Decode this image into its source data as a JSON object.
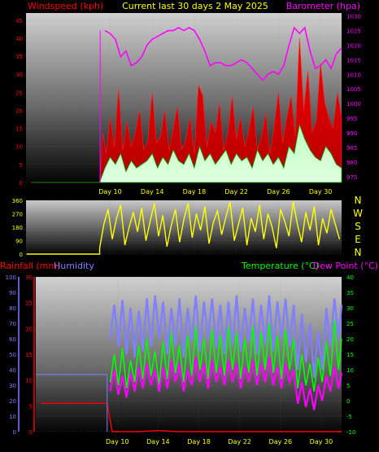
{
  "header": {
    "left_label": "Windspeed (kph)",
    "center_label": "Current last 30 days 2 May 2025",
    "right_label": "Barometer (hpa)"
  },
  "compass": [
    "N",
    "W",
    "S",
    "E",
    "N"
  ],
  "bottom_header": {
    "rain_label": "Rainfall (mm)",
    "humidity_label": "Humidity",
    "temp_label": "Temperature (°C)",
    "dew_label": "Dew Point (°C)"
  },
  "colors": {
    "wind": "#ff0000",
    "gust": "#ff0000",
    "avgwind": "#00c000",
    "barometer": "#ff00ff",
    "direction": "#ffff00",
    "humidity": "#7f7fff",
    "temperature": "#00ff00",
    "dewpoint": "#ff00ff",
    "rain": "#ff0000",
    "tick_text": "#ffff00",
    "left_axis_top": "#ff0000",
    "right_axis_top": "#ff00ff",
    "left_axis_bottom_hum": "#7f7fff",
    "left_axis_bottom_rain": "#ff0000",
    "right_axis_bottom": "#00ff00"
  },
  "chart_data": [
    {
      "type": "line",
      "x_ticks": [
        "Day 10",
        "Day 14",
        "Day 18",
        "Day 22",
        "Day 26",
        "Day 30"
      ],
      "x_range_days": [
        2,
        32
      ],
      "y_left": {
        "ticks": [
          0,
          5,
          10,
          15,
          20,
          25,
          30,
          35,
          40,
          45
        ],
        "ylim": [
          0,
          47
        ]
      },
      "y_right": {
        "ticks": [
          975,
          980,
          985,
          990,
          995,
          1000,
          1005,
          1010,
          1015,
          1020,
          1025,
          1030
        ],
        "ylim": [
          973,
          1031
        ]
      },
      "series": [
        {
          "x": [
            2.5,
            3,
            4,
            5,
            6,
            7,
            8,
            9,
            9.5,
            10,
            10.5,
            11,
            11.5,
            12,
            12.5,
            13,
            13.5,
            14,
            14.5,
            15,
            15.5,
            16,
            16.5,
            17,
            17.5,
            18,
            18.5,
            19,
            19.5,
            20,
            20.5,
            21,
            21.5,
            22,
            22.5,
            23,
            23.5,
            24,
            24.5,
            25,
            25.5,
            26,
            26.5,
            27,
            27.5,
            28,
            28.5,
            29,
            29.5,
            30,
            30.5,
            31,
            31.5,
            32
          ],
          "y": [
            null,
            null,
            null,
            null,
            null,
            null,
            null,
            null,
            1025,
            1024,
            1022,
            1016,
            1018,
            1013,
            1014,
            1016,
            1020,
            1022,
            1023,
            1024,
            1025,
            1025,
            1026,
            1025,
            1026,
            1025,
            1022,
            1018,
            1013,
            1014,
            1014,
            1013,
            1013,
            1014,
            1015,
            1014,
            1012,
            1010,
            1008,
            1010,
            1011,
            1010,
            1013,
            1020,
            1026,
            1024,
            1026,
            1018,
            1012,
            1013,
            1015,
            1012,
            1017,
            1019
          ]
        },
        {
          "x": [
            2.5,
            3,
            4,
            5,
            6,
            7,
            8,
            9,
            9.3,
            9.6,
            10,
            10.4,
            10.8,
            11.2,
            11.6,
            12,
            12.4,
            12.8,
            13.2,
            13.6,
            14,
            14.4,
            14.8,
            15.2,
            15.6,
            16,
            16.4,
            16.8,
            17.2,
            17.6,
            18,
            18.4,
            18.8,
            19.2,
            19.6,
            20,
            20.4,
            20.8,
            21.2,
            21.6,
            22,
            22.4,
            22.8,
            23.2,
            23.6,
            24,
            24.4,
            24.8,
            25.2,
            25.6,
            26,
            26.4,
            26.8,
            27.2,
            27.6,
            28,
            28.4,
            28.8,
            29.2,
            29.6,
            30,
            30.4,
            30.8,
            31.2,
            31.6,
            32
          ],
          "y": [
            0,
            0,
            0,
            0,
            0,
            0,
            0,
            0,
            14,
            8,
            18,
            10,
            26,
            9,
            17,
            10,
            14,
            20,
            9,
            12,
            25,
            11,
            13,
            20,
            9,
            15,
            21,
            9,
            12,
            18,
            8,
            27,
            24,
            10,
            17,
            14,
            22,
            9,
            14,
            24,
            12,
            18,
            10,
            15,
            21,
            9,
            13,
            19,
            8,
            16,
            25,
            11,
            18,
            24,
            13,
            40,
            20,
            31,
            14,
            17,
            33,
            22,
            18,
            15,
            25,
            18
          ]
        },
        {
          "x": [
            2.5,
            9,
            9.5,
            10,
            10.5,
            11,
            11.5,
            12,
            12.5,
            13,
            13.5,
            14,
            14.5,
            15,
            15.5,
            16,
            16.5,
            17,
            17.5,
            18,
            18.5,
            19,
            19.5,
            20,
            20.5,
            21,
            21.5,
            22,
            22.5,
            23,
            23.5,
            24,
            24.5,
            25,
            25.5,
            26,
            26.5,
            27,
            27.5,
            28,
            28.5,
            29,
            29.5,
            30,
            30.5,
            31,
            31.5,
            32
          ],
          "y": [
            0,
            0,
            4,
            7,
            5,
            8,
            3,
            6,
            4,
            5,
            6,
            8,
            4,
            7,
            5,
            9,
            6,
            5,
            8,
            4,
            10,
            6,
            8,
            5,
            7,
            9,
            5,
            8,
            6,
            7,
            4,
            9,
            6,
            8,
            5,
            7,
            4,
            10,
            8,
            16,
            12,
            9,
            7,
            6,
            10,
            8,
            5,
            4
          ]
        }
      ]
    },
    {
      "type": "scatter",
      "x_ticks": [
        "Day 10",
        "Day 14",
        "Day 18",
        "Day 22",
        "Day 26",
        "Day 30"
      ],
      "y_ticks": [
        0,
        90,
        180,
        270,
        360
      ],
      "ylim": [
        0,
        360
      ],
      "right_labels": [
        "N",
        "W",
        "S",
        "E",
        "N"
      ],
      "series": [
        {
          "x": [
            9,
            9.4,
            9.8,
            10.2,
            10.6,
            11,
            11.4,
            11.8,
            12.2,
            12.6,
            13,
            13.4,
            13.8,
            14.2,
            14.6,
            15,
            15.4,
            15.8,
            16.2,
            16.6,
            17,
            17.4,
            17.8,
            18.2,
            18.6,
            19,
            19.4,
            19.8,
            20.2,
            20.6,
            21,
            21.4,
            21.8,
            22.2,
            22.6,
            23,
            23.4,
            23.8,
            24.2,
            24.6,
            25,
            25.4,
            25.8,
            26.2,
            26.6,
            27,
            27.4,
            27.8,
            28.2,
            28.6,
            29,
            29.4,
            29.8,
            30.2,
            30.6,
            31,
            31.4,
            31.8
          ],
          "y": [
            40,
            200,
            300,
            100,
            240,
            330,
            60,
            180,
            280,
            150,
            310,
            90,
            220,
            340,
            120,
            260,
            50,
            190,
            300,
            80,
            230,
            340,
            110,
            270,
            160,
            320,
            70,
            210,
            290,
            130,
            250,
            350,
            90,
            200,
            310,
            60,
            240,
            150,
            330,
            100,
            270,
            180,
            40,
            300,
            220,
            120,
            350,
            200,
            80,
            280,
            160,
            320,
            60,
            240,
            140,
            300,
            200,
            100
          ]
        }
      ]
    },
    {
      "type": "line",
      "x_ticks": [
        "Day 10",
        "Day 14",
        "Day 18",
        "Day 22",
        "Day 26",
        "Day 30"
      ],
      "y_left_humidity": {
        "ticks": [
          0,
          10,
          20,
          30,
          40,
          50,
          60,
          70,
          80,
          90,
          100
        ],
        "ylim": [
          0,
          100
        ]
      },
      "y_left_rain": {
        "ticks": [
          0,
          5,
          10,
          15,
          20,
          25,
          30
        ],
        "ylim": [
          0,
          30
        ]
      },
      "y_right": {
        "ticks": [
          -10,
          -5,
          0,
          5,
          10,
          15,
          20,
          25,
          30,
          35,
          40
        ],
        "ylim": [
          -10,
          40
        ]
      },
      "series": [
        {
          "x": [
            2.5,
            9,
            9.3,
            9.7,
            10.1,
            10.5,
            10.9,
            11.3,
            11.7,
            12.1,
            12.5,
            12.9,
            13.3,
            13.7,
            14.1,
            14.5,
            14.9,
            15.3,
            15.7,
            16.1,
            16.5,
            16.9,
            17.3,
            17.7,
            18.1,
            18.5,
            18.9,
            19.3,
            19.7,
            20.1,
            20.5,
            20.9,
            21.3,
            21.7,
            22.1,
            22.5,
            22.9,
            23.3,
            23.7,
            24.1,
            24.5,
            24.9,
            25.3,
            25.7,
            26.1,
            26.5,
            26.9,
            27.3,
            27.7,
            28.1,
            28.5,
            28.9,
            29.3,
            29.7,
            30.1,
            30.5,
            30.9,
            31.3,
            31.7,
            32
          ],
          "y": [
            null,
            null,
            60,
            82,
            55,
            85,
            50,
            80,
            48,
            78,
            52,
            86,
            55,
            88,
            60,
            84,
            50,
            80,
            55,
            86,
            48,
            80,
            58,
            88,
            52,
            84,
            60,
            86,
            54,
            82,
            50,
            84,
            56,
            88,
            52,
            80,
            58,
            86,
            50,
            82,
            56,
            88,
            52,
            84,
            60,
            86,
            55,
            82,
            40,
            76,
            45,
            70,
            35,
            65,
            40,
            80,
            55,
            86,
            60,
            82
          ]
        },
        {
          "x": [
            2.5,
            9,
            9.3,
            9.7,
            10.1,
            10.5,
            10.9,
            11.3,
            11.7,
            12.1,
            12.5,
            12.9,
            13.3,
            13.7,
            14.1,
            14.5,
            14.9,
            15.3,
            15.7,
            16.1,
            16.5,
            16.9,
            17.3,
            17.7,
            18.1,
            18.5,
            18.9,
            19.3,
            19.7,
            20.1,
            20.5,
            20.9,
            21.3,
            21.7,
            22.1,
            22.5,
            22.9,
            23.3,
            23.7,
            24.1,
            24.5,
            24.9,
            25.3,
            25.7,
            26.1,
            26.5,
            26.9,
            27.3,
            27.7,
            28.1,
            28.5,
            28.9,
            29.3,
            29.7,
            30.1,
            30.5,
            30.9,
            31.3,
            31.7,
            32
          ],
          "y": [
            null,
            null,
            6,
            15,
            5,
            17,
            4,
            13,
            6,
            18,
            7,
            20,
            8,
            16,
            5,
            19,
            7,
            22,
            9,
            18,
            6,
            21,
            8,
            24,
            10,
            20,
            7,
            23,
            9,
            21,
            8,
            24,
            10,
            22,
            7,
            20,
            9,
            24,
            8,
            22,
            10,
            25,
            9,
            21,
            7,
            23,
            10,
            20,
            4,
            15,
            5,
            12,
            3,
            14,
            6,
            19,
            8,
            26,
            10,
            20
          ]
        },
        {
          "x": [
            2.5,
            9,
            9.3,
            9.7,
            10.1,
            10.5,
            10.9,
            11.3,
            11.7,
            12.1,
            12.5,
            12.9,
            13.3,
            13.7,
            14.1,
            14.5,
            14.9,
            15.3,
            15.7,
            16.1,
            16.5,
            16.9,
            17.3,
            17.7,
            18.1,
            18.5,
            18.9,
            19.3,
            19.7,
            20.1,
            20.5,
            20.9,
            21.3,
            21.7,
            22.1,
            22.5,
            22.9,
            23.3,
            23.7,
            24.1,
            24.5,
            24.9,
            25.3,
            25.7,
            26.1,
            26.5,
            26.9,
            27.3,
            27.7,
            28.1,
            28.5,
            28.9,
            29.3,
            29.7,
            30.1,
            30.5,
            30.9,
            31.3,
            31.7,
            32
          ],
          "y": [
            null,
            null,
            3,
            10,
            2,
            8,
            1,
            9,
            3,
            11,
            4,
            12,
            5,
            10,
            3,
            11,
            4,
            13,
            6,
            12,
            3,
            10,
            5,
            14,
            6,
            12,
            4,
            13,
            6,
            11,
            5,
            13,
            6,
            12,
            4,
            11,
            6,
            13,
            5,
            12,
            6,
            14,
            5,
            11,
            4,
            12,
            6,
            10,
            -1,
            6,
            -2,
            4,
            -3,
            5,
            0,
            8,
            3,
            11,
            4,
            9
          ]
        },
        {
          "x": [
            2.5,
            9,
            9.5,
            10,
            12,
            14,
            16,
            18,
            20,
            22,
            24,
            26,
            28,
            30,
            32
          ],
          "y": [
            5.5,
            5.5,
            0,
            0,
            0,
            0.2,
            0,
            0,
            0,
            0,
            0,
            0,
            0,
            0,
            0
          ]
        }
      ]
    }
  ]
}
